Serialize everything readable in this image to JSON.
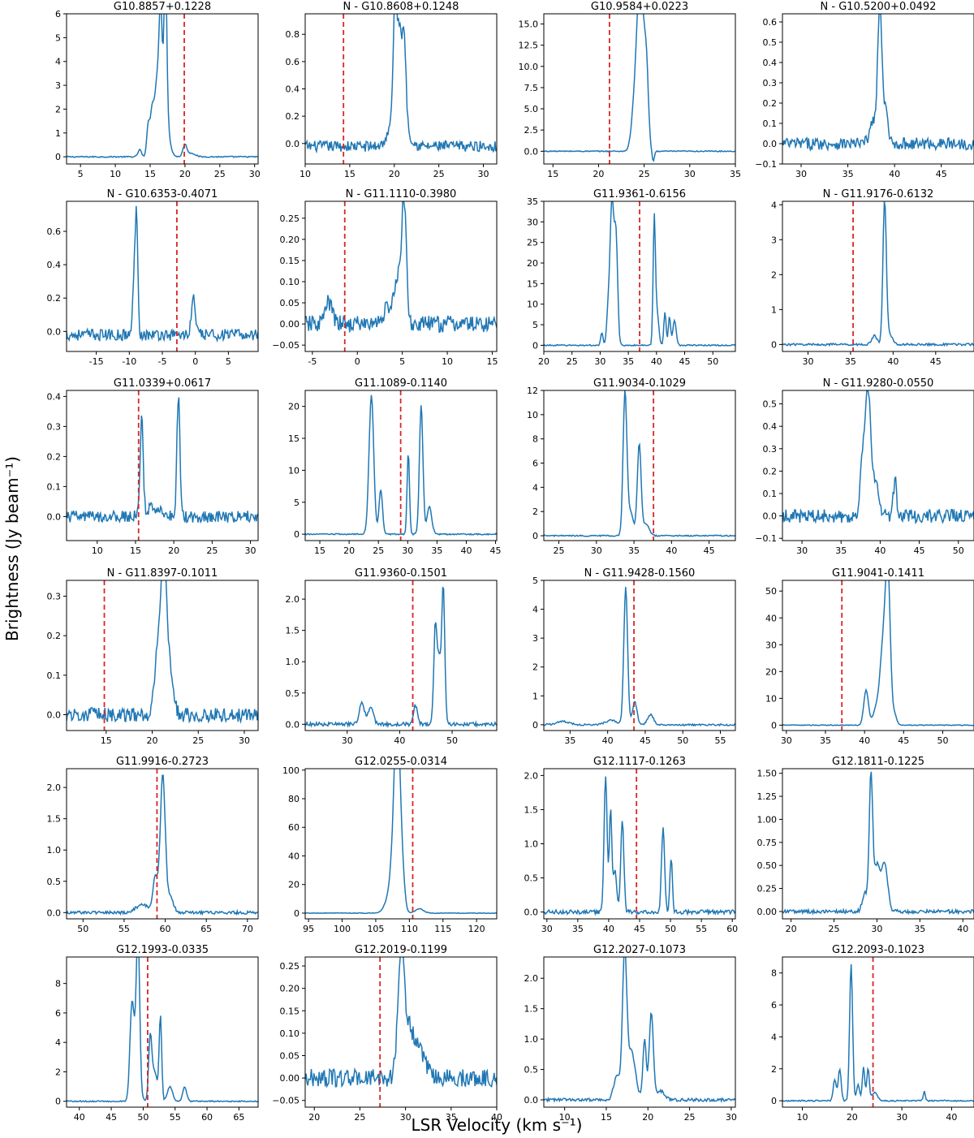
{
  "figure": {
    "xlabel": "LSR Velocity (km s⁻¹)",
    "ylabel": "Brightness (Jy beam⁻¹)",
    "line_color": "#1f77b4",
    "marker_color": "#d62728"
  },
  "chart_data": [
    {
      "type": "line",
      "title": "G10.8857+0.1228",
      "xlim": [
        3,
        30.5
      ],
      "ylim": [
        -0.3,
        6
      ],
      "xticks": [
        5,
        10,
        15,
        20,
        25,
        30
      ],
      "yticks": [
        0,
        1,
        2,
        3,
        4,
        5,
        6
      ],
      "yfmt": 0,
      "vline": 19.9,
      "noise": 0.025,
      "baseline": 0,
      "peaks": [
        [
          13.5,
          0.3,
          0.25
        ],
        [
          14.7,
          1.2,
          0.2
        ],
        [
          15.3,
          2.0,
          0.3
        ],
        [
          16.0,
          2.5,
          0.3
        ],
        [
          16.5,
          4.1,
          0.2
        ],
        [
          17.2,
          5.7,
          0.2
        ],
        [
          16.9,
          2.5,
          0.6
        ],
        [
          20.0,
          0.5,
          0.3
        ],
        [
          21.0,
          0.15,
          0.5
        ]
      ]
    },
    {
      "type": "line",
      "title": "N - G10.8608+0.1248",
      "xlim": [
        10,
        31.5
      ],
      "ylim": [
        -0.15,
        0.95
      ],
      "xticks": [
        10,
        15,
        20,
        25,
        30
      ],
      "yticks": [
        0.0,
        0.2,
        0.4,
        0.6,
        0.8
      ],
      "yfmt": 1,
      "vline": 14.3,
      "noise": 0.04,
      "baseline": -0.02,
      "peaks": [
        [
          20.1,
          0.9,
          0.2
        ],
        [
          20.6,
          0.55,
          0.2
        ],
        [
          21.1,
          0.62,
          0.2
        ],
        [
          20.5,
          0.3,
          0.8
        ]
      ]
    },
    {
      "type": "line",
      "title": "G10.9584+0.0223",
      "xlim": [
        14,
        35
      ],
      "ylim": [
        -1.5,
        16.2
      ],
      "xticks": [
        15,
        20,
        25,
        30,
        35
      ],
      "yticks": [
        0.0,
        2.5,
        5.0,
        7.5,
        10.0,
        12.5,
        15.0
      ],
      "yfmt": 1,
      "vline": 21.2,
      "noise": 0.06,
      "baseline": 0,
      "peaks": [
        [
          24.0,
          6.0,
          0.35
        ],
        [
          24.5,
          15.7,
          0.3
        ],
        [
          25.0,
          9.5,
          0.3
        ],
        [
          25.3,
          5.0,
          0.2
        ],
        [
          26.0,
          -1.2,
          0.12
        ]
      ]
    },
    {
      "type": "line",
      "title": "N - G10.5200+0.0492",
      "xlim": [
        28,
        48.5
      ],
      "ylim": [
        -0.1,
        0.64
      ],
      "xticks": [
        30,
        35,
        40,
        45
      ],
      "yticks": [
        -0.1,
        0.0,
        0.1,
        0.2,
        0.3,
        0.4,
        0.5,
        0.6
      ],
      "yfmt": 1,
      "vline": null,
      "noise": 0.03,
      "baseline": 0.0,
      "peaks": [
        [
          37.8,
          0.12,
          0.4
        ],
        [
          38.4,
          0.61,
          0.2
        ],
        [
          38.9,
          0.2,
          0.3
        ]
      ]
    },
    {
      "type": "line",
      "title": "N - G10.6353-0.4071",
      "xlim": [
        -19.5,
        9.5
      ],
      "ylim": [
        -0.12,
        0.78
      ],
      "xticks": [
        -15,
        -10,
        -5,
        0,
        5
      ],
      "yticks": [
        0.0,
        0.2,
        0.4,
        0.6
      ],
      "yfmt": 1,
      "vline": -2.8,
      "noise": 0.035,
      "baseline": -0.02,
      "peaks": [
        [
          -9.3,
          0.3,
          0.2
        ],
        [
          -8.9,
          0.72,
          0.2
        ],
        [
          -0.3,
          0.22,
          0.3
        ]
      ]
    },
    {
      "type": "line",
      "title": "N - G11.1110-0.3980",
      "xlim": [
        -5.8,
        15.5
      ],
      "ylim": [
        -0.065,
        0.29
      ],
      "xticks": [
        -5,
        0,
        5,
        10,
        15
      ],
      "yticks": [
        -0.05,
        0.0,
        0.05,
        0.1,
        0.15,
        0.2,
        0.25
      ],
      "yfmt": 2,
      "vline": -1.4,
      "noise": 0.02,
      "baseline": 0.0,
      "peaks": [
        [
          -3.2,
          0.05,
          0.4
        ],
        [
          4.6,
          0.1,
          0.4
        ],
        [
          5.2,
          0.27,
          0.25
        ],
        [
          3.5,
          0.04,
          0.6
        ]
      ]
    },
    {
      "type": "line",
      "title": "G11.9361-0.6156",
      "xlim": [
        20,
        54
      ],
      "ylim": [
        -1.5,
        35
      ],
      "xticks": [
        20,
        25,
        30,
        35,
        40,
        45,
        50
      ],
      "yticks": [
        0,
        5,
        10,
        15,
        20,
        25,
        30,
        35
      ],
      "yfmt": 0,
      "vline": 37.0,
      "noise": 0.15,
      "baseline": 0,
      "peaks": [
        [
          30.3,
          3.0,
          0.2
        ],
        [
          31.5,
          10.0,
          0.3
        ],
        [
          32.1,
          33.5,
          0.3
        ],
        [
          32.8,
          27.0,
          0.3
        ],
        [
          39.6,
          30.0,
          0.2
        ],
        [
          40.1,
          8.0,
          0.3
        ],
        [
          41.5,
          8.0,
          0.2
        ],
        [
          42.3,
          7.0,
          0.2
        ],
        [
          43.2,
          6.0,
          0.3
        ]
      ]
    },
    {
      "type": "line",
      "title": "N - G11.9176-0.6132",
      "xlim": [
        27,
        49.5
      ],
      "ylim": [
        -0.2,
        4.1
      ],
      "xticks": [
        30,
        35,
        40,
        45
      ],
      "yticks": [
        0,
        1,
        2,
        3,
        4
      ],
      "yfmt": 0,
      "vline": 35.3,
      "noise": 0.03,
      "baseline": 0,
      "peaks": [
        [
          37.8,
          0.25,
          0.3
        ],
        [
          39.0,
          4.0,
          0.2
        ],
        [
          39.5,
          0.3,
          0.4
        ]
      ]
    },
    {
      "type": "line",
      "title": "G11.0339+0.0617",
      "xlim": [
        6,
        31
      ],
      "ylim": [
        -0.08,
        0.42
      ],
      "xticks": [
        10,
        15,
        20,
        25,
        30
      ],
      "yticks": [
        0.0,
        0.1,
        0.2,
        0.3,
        0.4
      ],
      "yfmt": 1,
      "vline": 15.4,
      "noise": 0.02,
      "baseline": 0,
      "peaks": [
        [
          15.8,
          0.32,
          0.2
        ],
        [
          20.6,
          0.4,
          0.2
        ],
        [
          17.5,
          0.03,
          1.0
        ]
      ]
    },
    {
      "type": "line",
      "title": "G11.1089-0.1140",
      "xlim": [
        12.5,
        45.2
      ],
      "ylim": [
        -1,
        22.5
      ],
      "xticks": [
        15,
        20,
        25,
        30,
        35,
        40,
        45
      ],
      "yticks": [
        0,
        5,
        10,
        15,
        20
      ],
      "yfmt": 0,
      "vline": 28.8,
      "noise": 0.1,
      "baseline": 0,
      "peaks": [
        [
          23.8,
          21.8,
          0.4
        ],
        [
          25.4,
          7.0,
          0.3
        ],
        [
          30.1,
          13.0,
          0.2
        ],
        [
          32.3,
          20.2,
          0.3
        ],
        [
          33.7,
          4.3,
          0.4
        ]
      ]
    },
    {
      "type": "line",
      "title": "G11.9034-0.1029",
      "xlim": [
        23,
        48.5
      ],
      "ylim": [
        -0.4,
        12
      ],
      "xticks": [
        25,
        30,
        35,
        40,
        45
      ],
      "yticks": [
        0,
        2,
        4,
        6,
        8,
        10,
        12
      ],
      "yfmt": 0,
      "vline": 37.6,
      "noise": 0.05,
      "baseline": 0,
      "peaks": [
        [
          33.8,
          11.6,
          0.25
        ],
        [
          34.5,
          2.0,
          0.4
        ],
        [
          35.7,
          7.6,
          0.25
        ],
        [
          36.6,
          1.0,
          0.4
        ]
      ]
    },
    {
      "type": "line",
      "title": "N - G11.9280-0.0550",
      "xlim": [
        27.5,
        52
      ],
      "ylim": [
        -0.11,
        0.56
      ],
      "xticks": [
        30,
        35,
        40,
        45,
        50
      ],
      "yticks": [
        -0.1,
        0.0,
        0.1,
        0.2,
        0.3,
        0.4,
        0.5
      ],
      "yfmt": 1,
      "vline": null,
      "noise": 0.03,
      "baseline": 0.0,
      "peaks": [
        [
          37.7,
          0.2,
          0.3
        ],
        [
          38.4,
          0.53,
          0.35
        ],
        [
          39.3,
          0.15,
          0.5
        ],
        [
          41.9,
          0.17,
          0.2
        ]
      ]
    },
    {
      "type": "line",
      "title": "N - G11.8397-0.1011",
      "xlim": [
        10.7,
        31.5
      ],
      "ylim": [
        -0.04,
        0.34
      ],
      "xticks": [
        15,
        20,
        25,
        30
      ],
      "yticks": [
        0.0,
        0.1,
        0.2,
        0.3
      ],
      "yfmt": 1,
      "vline": 14.8,
      "noise": 0.018,
      "baseline": 0.0,
      "peaks": [
        [
          20.7,
          0.18,
          0.4
        ],
        [
          21.3,
          0.33,
          0.3
        ],
        [
          21.9,
          0.1,
          0.4
        ]
      ]
    },
    {
      "type": "line",
      "title": "G11.9360-0.1501",
      "xlim": [
        22,
        58.5
      ],
      "ylim": [
        -0.1,
        2.3
      ],
      "xticks": [
        30,
        40,
        50
      ],
      "yticks": [
        0.0,
        0.5,
        1.0,
        1.5,
        2.0
      ],
      "yfmt": 1,
      "vline": 42.5,
      "noise": 0.03,
      "baseline": 0,
      "peaks": [
        [
          32.8,
          0.35,
          0.5
        ],
        [
          34.5,
          0.25,
          0.5
        ],
        [
          43.0,
          0.3,
          0.4
        ],
        [
          46.8,
          1.58,
          0.3
        ],
        [
          47.5,
          1.0,
          0.3
        ],
        [
          48.3,
          2.22,
          0.3
        ]
      ]
    },
    {
      "type": "line",
      "title": "N - G11.9428-0.1560",
      "xlim": [
        31.5,
        57
      ],
      "ylim": [
        -0.2,
        5
      ],
      "xticks": [
        35,
        40,
        45,
        50,
        55
      ],
      "yticks": [
        0,
        1,
        2,
        3,
        4,
        5
      ],
      "yfmt": 0,
      "vline": 43.5,
      "noise": 0.03,
      "baseline": 0,
      "peaks": [
        [
          42.4,
          4.75,
          0.25
        ],
        [
          43.6,
          0.8,
          0.3
        ],
        [
          45.7,
          0.35,
          0.4
        ],
        [
          34.0,
          0.12,
          0.8
        ],
        [
          40.5,
          0.15,
          0.8
        ]
      ]
    },
    {
      "type": "line",
      "title": "G11.9041-0.1411",
      "xlim": [
        29.5,
        54
      ],
      "ylim": [
        -2,
        54
      ],
      "xticks": [
        30,
        35,
        40,
        45,
        50
      ],
      "yticks": [
        0,
        10,
        20,
        30,
        40,
        50
      ],
      "yfmt": 0,
      "vline": 37.1,
      "noise": 0.15,
      "baseline": 0,
      "peaks": [
        [
          40.2,
          13.0,
          0.3
        ],
        [
          41.5,
          6.0,
          0.4
        ],
        [
          42.4,
          30.0,
          0.4
        ],
        [
          43.0,
          52.0,
          0.3
        ],
        [
          43.8,
          4.0,
          0.3
        ]
      ]
    },
    {
      "type": "line",
      "title": "G11.9916-0.2723",
      "xlim": [
        48,
        71.3
      ],
      "ylim": [
        -0.1,
        2.3
      ],
      "xticks": [
        50,
        55,
        60,
        65,
        70
      ],
      "yticks": [
        0.0,
        0.5,
        1.0,
        1.5,
        2.0
      ],
      "yfmt": 1,
      "vline": 59.0,
      "noise": 0.025,
      "baseline": 0,
      "peaks": [
        [
          57.2,
          0.12,
          0.8
        ],
        [
          58.8,
          0.55,
          0.3
        ],
        [
          59.7,
          2.2,
          0.3
        ],
        [
          60.6,
          0.25,
          0.4
        ]
      ]
    },
    {
      "type": "line",
      "title": "G12.0255-0.0314",
      "xlim": [
        94.5,
        123
      ],
      "ylim": [
        -4,
        101
      ],
      "xticks": [
        95,
        100,
        105,
        110,
        115,
        120
      ],
      "yticks": [
        0,
        20,
        40,
        60,
        80,
        100
      ],
      "yfmt": 0,
      "vline": 110.5,
      "noise": 0.2,
      "baseline": 0,
      "peaks": [
        [
          106.8,
          8.0,
          0.6
        ],
        [
          107.8,
          55.0,
          0.5
        ],
        [
          108.2,
          98.0,
          0.35
        ],
        [
          108.8,
          40.0,
          0.4
        ],
        [
          111.5,
          3.0,
          0.6
        ]
      ]
    },
    {
      "type": "line",
      "title": "G12.1117-0.1263",
      "xlim": [
        29.5,
        60.5
      ],
      "ylim": [
        -0.1,
        2.1
      ],
      "xticks": [
        30,
        35,
        40,
        45,
        50,
        55,
        60
      ],
      "yticks": [
        0.0,
        0.5,
        1.0,
        1.5,
        2.0
      ],
      "yfmt": 1,
      "vline": 44.5,
      "noise": 0.03,
      "baseline": 0,
      "peaks": [
        [
          39.5,
          2.0,
          0.25
        ],
        [
          40.3,
          1.47,
          0.2
        ],
        [
          41.0,
          0.6,
          0.3
        ],
        [
          42.2,
          1.35,
          0.25
        ],
        [
          48.8,
          1.24,
          0.25
        ],
        [
          50.1,
          0.8,
          0.2
        ]
      ]
    },
    {
      "type": "line",
      "title": "G12.1811-0.1225",
      "xlim": [
        19,
        41.3
      ],
      "ylim": [
        -0.08,
        1.55
      ],
      "xticks": [
        20,
        25,
        30,
        35,
        40
      ],
      "yticks": [
        0.0,
        0.25,
        0.5,
        0.75,
        1.0,
        1.25,
        1.5
      ],
      "yfmt": 2,
      "vline": null,
      "noise": 0.02,
      "baseline": 0,
      "peaks": [
        [
          29.3,
          1.46,
          0.2
        ],
        [
          30.0,
          0.5,
          0.35
        ],
        [
          30.9,
          0.52,
          0.35
        ],
        [
          28.6,
          0.2,
          0.3
        ]
      ]
    },
    {
      "type": "line",
      "title": "G12.1993-0.0335",
      "xlim": [
        38,
        68
      ],
      "ylim": [
        -0.4,
        9.8
      ],
      "xticks": [
        40,
        45,
        50,
        55,
        60,
        65
      ],
      "yticks": [
        0,
        2,
        4,
        6,
        8
      ],
      "yfmt": 0,
      "vline": 50.7,
      "noise": 0.04,
      "baseline": 0,
      "peaks": [
        [
          48.2,
          5.0,
          0.3
        ],
        [
          49.2,
          9.3,
          0.25
        ],
        [
          48.8,
          3.5,
          0.5
        ],
        [
          51.1,
          4.2,
          0.25
        ],
        [
          51.8,
          2.0,
          0.4
        ],
        [
          52.7,
          5.7,
          0.2
        ],
        [
          54.2,
          1.0,
          0.4
        ],
        [
          56.5,
          1.0,
          0.3
        ]
      ]
    },
    {
      "type": "line",
      "title": "G12.2019-0.1199",
      "xlim": [
        19,
        40
      ],
      "ylim": [
        -0.065,
        0.27
      ],
      "xticks": [
        20,
        25,
        30,
        35,
        40
      ],
      "yticks": [
        -0.05,
        0.0,
        0.05,
        0.1,
        0.15,
        0.2,
        0.25
      ],
      "yfmt": 2,
      "vline": 27.2,
      "noise": 0.02,
      "baseline": 0.0,
      "peaks": [
        [
          29.5,
          0.25,
          0.35
        ],
        [
          30.3,
          0.1,
          0.6
        ],
        [
          31.5,
          0.05,
          0.7
        ]
      ]
    },
    {
      "type": "line",
      "title": "G12.2027-0.1073",
      "xlim": [
        7.5,
        30.5
      ],
      "ylim": [
        -0.12,
        2.35
      ],
      "xticks": [
        10,
        15,
        20,
        25,
        30
      ],
      "yticks": [
        0.0,
        0.5,
        1.0,
        1.5,
        2.0
      ],
      "yfmt": 1,
      "vline": null,
      "noise": 0.025,
      "baseline": 0,
      "peaks": [
        [
          16.3,
          0.4,
          0.4
        ],
        [
          17.2,
          2.28,
          0.25
        ],
        [
          18.0,
          0.8,
          0.5
        ],
        [
          19.6,
          0.98,
          0.2
        ],
        [
          20.4,
          1.42,
          0.25
        ],
        [
          21.5,
          0.15,
          0.5
        ]
      ]
    },
    {
      "type": "line",
      "title": "G12.2093-0.1023",
      "xlim": [
        6,
        44.5
      ],
      "ylim": [
        -0.4,
        9
      ],
      "xticks": [
        10,
        20,
        30,
        40
      ],
      "yticks": [
        0,
        2,
        4,
        6,
        8
      ],
      "yfmt": 0,
      "vline": 24.2,
      "noise": 0.04,
      "baseline": 0,
      "peaks": [
        [
          16.5,
          1.3,
          0.3
        ],
        [
          17.5,
          2.0,
          0.3
        ],
        [
          19.8,
          8.6,
          0.3
        ],
        [
          21.2,
          1.0,
          0.3
        ],
        [
          22.3,
          2.1,
          0.25
        ],
        [
          23.2,
          2.0,
          0.25
        ],
        [
          24.5,
          0.5,
          0.6
        ],
        [
          34.5,
          0.6,
          0.2
        ]
      ]
    }
  ]
}
